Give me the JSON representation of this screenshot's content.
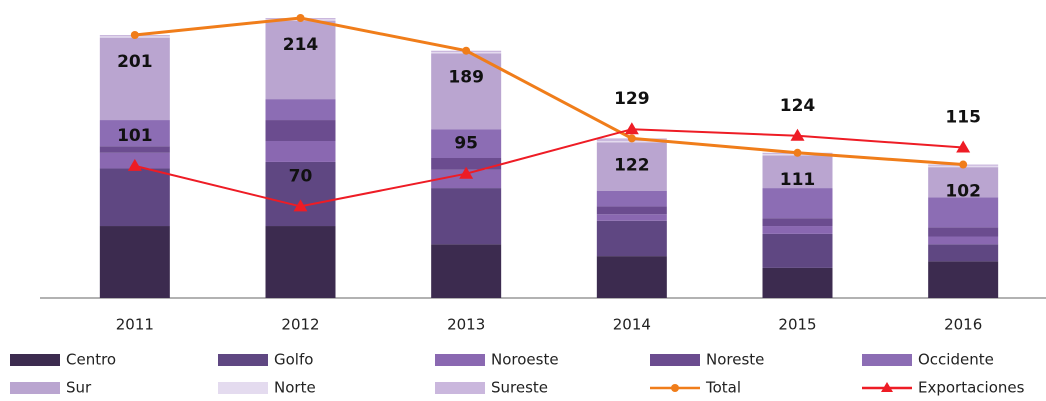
{
  "chart_data": {
    "type": "bar",
    "categories": [
      "2011",
      "2012",
      "2013",
      "2014",
      "2015",
      "2016"
    ],
    "series": [
      {
        "name": "Centro",
        "color": "#3c2b4f",
        "values": [
          55,
          55,
          41,
          32,
          23,
          28
        ]
      },
      {
        "name": "Golfo",
        "color": "#5f4782",
        "values": [
          44,
          49,
          43,
          27,
          26,
          13
        ]
      },
      {
        "name": "Noroeste",
        "color": "#8a68b1",
        "values": [
          12,
          16,
          14,
          5,
          6,
          6
        ]
      },
      {
        "name": "Noreste",
        "color": "#6b4c8f",
        "values": [
          5,
          16,
          9,
          6,
          6,
          7
        ]
      },
      {
        "name": "Occidente",
        "color": "#8c6db4",
        "values": [
          20,
          16,
          22,
          12,
          23,
          23
        ]
      },
      {
        "name": "Sur",
        "color": "#baa5d0",
        "values": [
          63,
          60,
          58,
          37,
          25,
          23
        ]
      },
      {
        "name": "Norte",
        "color": "#e4dbef",
        "values": [
          1,
          1,
          1,
          1,
          1,
          1
        ]
      },
      {
        "name": "Sureste",
        "color": "#cab7dd",
        "values": [
          1,
          1,
          1,
          2,
          1,
          1
        ]
      },
      {
        "name": "Total",
        "type": "line",
        "color": "#f07d1a",
        "values": [
          201,
          214,
          189,
          122,
          111,
          102
        ]
      },
      {
        "name": "Exportaciones",
        "type": "line",
        "color": "#ee1c25",
        "values": [
          101,
          70,
          95,
          129,
          124,
          115
        ]
      }
    ]
  }
}
